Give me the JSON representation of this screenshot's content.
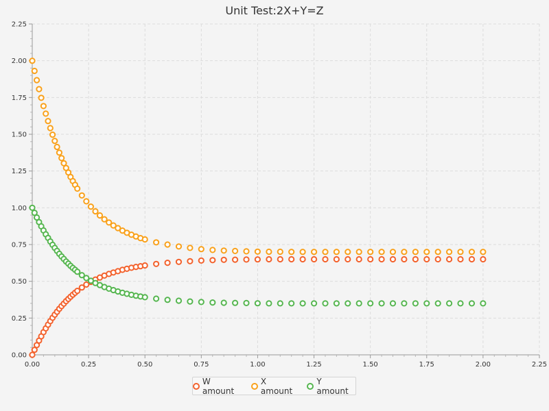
{
  "chart_data": {
    "type": "scatter",
    "title": "Unit Test:2X+Y=Z",
    "xlabel": "",
    "ylabel": "",
    "xlim": [
      0,
      2.25
    ],
    "ylim": [
      0,
      2.25
    ],
    "xticks": [
      "0.00",
      "0.25",
      "0.50",
      "0.75",
      "1.00",
      "1.25",
      "1.50",
      "1.75",
      "2.00",
      "2.25"
    ],
    "yticks": [
      "0.00",
      "0.25",
      "0.50",
      "0.75",
      "1.00",
      "1.25",
      "1.50",
      "1.75",
      "2.00",
      "2.25"
    ],
    "grid": true,
    "legend_position": "bottom",
    "series": [
      {
        "name": "W amount",
        "color": "#f3622d",
        "x": [
          0,
          0.01,
          0.02,
          0.03,
          0.04,
          0.05,
          0.06,
          0.07,
          0.08,
          0.09,
          0.1,
          0.11,
          0.12,
          0.13,
          0.14,
          0.15,
          0.16,
          0.17,
          0.18,
          0.19,
          0.2,
          0.22,
          0.24,
          0.26,
          0.28,
          0.3,
          0.32,
          0.34,
          0.36,
          0.38,
          0.4,
          0.42,
          0.44,
          0.46,
          0.48,
          0.5,
          0.55,
          0.6,
          0.65,
          0.7,
          0.75,
          0.8,
          0.85,
          0.9,
          0.95,
          1.0,
          1.05,
          1.1,
          1.15,
          1.2,
          1.25,
          1.3,
          1.35,
          1.4,
          1.45,
          1.5,
          1.55,
          1.6,
          1.65,
          1.7,
          1.75,
          1.8,
          1.85,
          1.9,
          1.95,
          2.0
        ],
        "y": [
          0,
          0.034,
          0.066,
          0.097,
          0.126,
          0.154,
          0.18,
          0.205,
          0.229,
          0.252,
          0.273,
          0.293,
          0.313,
          0.331,
          0.348,
          0.365,
          0.38,
          0.395,
          0.409,
          0.422,
          0.435,
          0.458,
          0.478,
          0.496,
          0.512,
          0.526,
          0.539,
          0.55,
          0.56,
          0.569,
          0.578,
          0.585,
          0.592,
          0.598,
          0.603,
          0.608,
          0.618,
          0.626,
          0.632,
          0.637,
          0.641,
          0.644,
          0.646,
          0.647,
          0.648,
          0.649,
          0.65,
          0.65,
          0.65,
          0.65,
          0.65,
          0.65,
          0.65,
          0.65,
          0.65,
          0.65,
          0.65,
          0.65,
          0.65,
          0.65,
          0.65,
          0.65,
          0.65,
          0.65,
          0.65,
          0.65
        ]
      },
      {
        "name": "X amount",
        "color": "#f9a11b",
        "x": [
          0,
          0.01,
          0.02,
          0.03,
          0.04,
          0.05,
          0.06,
          0.07,
          0.08,
          0.09,
          0.1,
          0.11,
          0.12,
          0.13,
          0.14,
          0.15,
          0.16,
          0.17,
          0.18,
          0.19,
          0.2,
          0.22,
          0.24,
          0.26,
          0.28,
          0.3,
          0.32,
          0.34,
          0.36,
          0.38,
          0.4,
          0.42,
          0.44,
          0.46,
          0.48,
          0.5,
          0.55,
          0.6,
          0.65,
          0.7,
          0.75,
          0.8,
          0.85,
          0.9,
          0.95,
          1.0,
          1.05,
          1.1,
          1.15,
          1.2,
          1.25,
          1.3,
          1.35,
          1.4,
          1.45,
          1.5,
          1.55,
          1.6,
          1.65,
          1.7,
          1.75,
          1.8,
          1.85,
          1.9,
          1.95,
          2.0
        ],
        "y": [
          2.0,
          1.931,
          1.868,
          1.807,
          1.748,
          1.692,
          1.64,
          1.59,
          1.542,
          1.497,
          1.455,
          1.414,
          1.375,
          1.338,
          1.303,
          1.271,
          1.24,
          1.21,
          1.182,
          1.156,
          1.13,
          1.084,
          1.044,
          1.008,
          0.976,
          0.948,
          0.922,
          0.9,
          0.88,
          0.862,
          0.845,
          0.83,
          0.817,
          0.805,
          0.794,
          0.785,
          0.765,
          0.75,
          0.737,
          0.727,
          0.719,
          0.713,
          0.709,
          0.706,
          0.704,
          0.702,
          0.701,
          0.701,
          0.7,
          0.7,
          0.7,
          0.7,
          0.7,
          0.7,
          0.7,
          0.7,
          0.7,
          0.7,
          0.7,
          0.7,
          0.7,
          0.7,
          0.7,
          0.7,
          0.7,
          0.7
        ]
      },
      {
        "name": "Y amount",
        "color": "#56b650",
        "x": [
          0,
          0.01,
          0.02,
          0.03,
          0.04,
          0.05,
          0.06,
          0.07,
          0.08,
          0.09,
          0.1,
          0.11,
          0.12,
          0.13,
          0.14,
          0.15,
          0.16,
          0.17,
          0.18,
          0.19,
          0.2,
          0.22,
          0.24,
          0.26,
          0.28,
          0.3,
          0.32,
          0.34,
          0.36,
          0.38,
          0.4,
          0.42,
          0.44,
          0.46,
          0.48,
          0.5,
          0.55,
          0.6,
          0.65,
          0.7,
          0.75,
          0.8,
          0.85,
          0.9,
          0.95,
          1.0,
          1.05,
          1.1,
          1.15,
          1.2,
          1.25,
          1.3,
          1.35,
          1.4,
          1.45,
          1.5,
          1.55,
          1.6,
          1.65,
          1.7,
          1.75,
          1.8,
          1.85,
          1.9,
          1.95,
          2.0
        ],
        "y": [
          1.0,
          0.966,
          0.934,
          0.903,
          0.874,
          0.846,
          0.82,
          0.795,
          0.771,
          0.748,
          0.727,
          0.707,
          0.687,
          0.669,
          0.652,
          0.635,
          0.62,
          0.605,
          0.591,
          0.578,
          0.565,
          0.542,
          0.522,
          0.504,
          0.488,
          0.474,
          0.461,
          0.45,
          0.44,
          0.431,
          0.422,
          0.415,
          0.408,
          0.402,
          0.397,
          0.392,
          0.382,
          0.374,
          0.368,
          0.363,
          0.359,
          0.356,
          0.354,
          0.353,
          0.352,
          0.351,
          0.35,
          0.35,
          0.35,
          0.35,
          0.35,
          0.35,
          0.35,
          0.35,
          0.35,
          0.35,
          0.35,
          0.35,
          0.35,
          0.35,
          0.35,
          0.35,
          0.35,
          0.35,
          0.35,
          0.35
        ]
      }
    ]
  }
}
